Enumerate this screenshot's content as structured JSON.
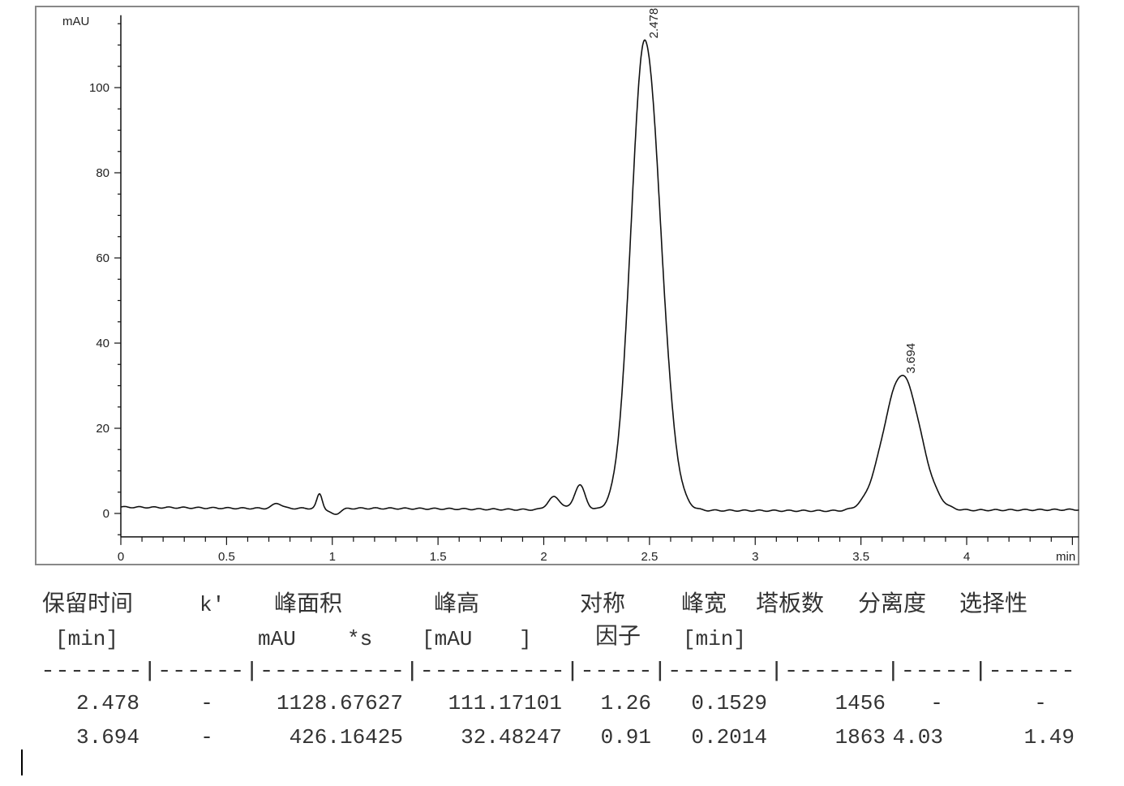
{
  "chart_data": {
    "type": "line",
    "xlabel": "min",
    "ylabel": "mAU",
    "xlim": [
      0,
      4.53
    ],
    "ylim": [
      -5.5,
      117
    ],
    "xticks": [
      "0",
      "0.5",
      "1",
      "1.5",
      "2",
      "2.5",
      "3",
      "3.5",
      "4"
    ],
    "yticks": [
      "0",
      "20",
      "40",
      "60",
      "80",
      "100"
    ],
    "grid": false,
    "baseline": [
      [
        0,
        1.5
      ],
      [
        0.6,
        1.2
      ],
      [
        1.2,
        1.2
      ],
      [
        1.5,
        1.1
      ],
      [
        1.9,
        0.9
      ],
      [
        2.8,
        0.7
      ],
      [
        3.4,
        0.6
      ],
      [
        4.53,
        0.9
      ]
    ],
    "peaks": [
      {
        "label": "2.478",
        "time": 2.478,
        "height": 111.17,
        "width": 0.1529
      },
      {
        "label": "3.694",
        "time": 3.694,
        "height": 32.48,
        "width": 0.2014
      }
    ],
    "minor_features": [
      {
        "time": 0.74,
        "height": 1.2,
        "width": 0.05
      },
      {
        "time": 0.94,
        "height": 3.4,
        "width": 0.03
      },
      {
        "time": 1.01,
        "height": -1.4,
        "width": 0.06
      },
      {
        "time": 2.05,
        "height": 3.0,
        "width": 0.07
      },
      {
        "time": 2.17,
        "height": 5.8,
        "width": 0.06
      }
    ]
  },
  "table": {
    "headers": [
      "保留时间",
      "k'",
      "峰面积",
      "峰高",
      "对称",
      "峰宽",
      "塔板数",
      "分离度",
      "选择性"
    ],
    "units": [
      "[min]",
      "mAU",
      "*s",
      "[mAU",
      "]",
      "因子",
      "[min]"
    ],
    "separator": "-------|------|----------|----------|-----|-------|-------|-----|------",
    "rows": [
      [
        "2.478",
        "-",
        "1128.67627",
        "111.17101",
        "1.26",
        "0.1529",
        "1456",
        "-",
        "-"
      ],
      [
        "3.694",
        "-",
        "426.16425",
        "32.48247",
        "0.91",
        "0.2014",
        "1863",
        "4.03",
        "1.49"
      ]
    ]
  }
}
